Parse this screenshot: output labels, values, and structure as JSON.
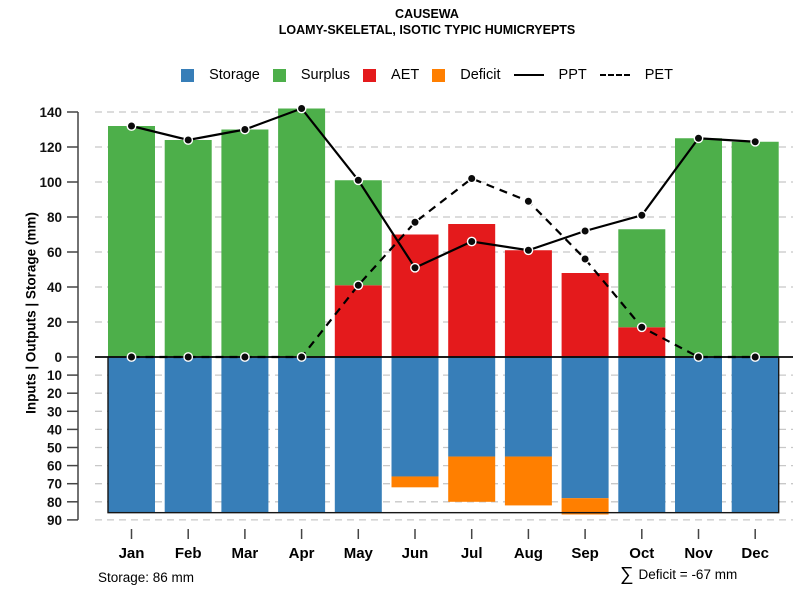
{
  "header": {
    "title": "CAUSEWA",
    "subtitle": "LOAMY-SKELETAL, ISOTIC TYPIC HUMICRYEPTS"
  },
  "legend": {
    "items": [
      {
        "label": "Storage",
        "swatch": "square",
        "color": "#377EB8"
      },
      {
        "label": "Surplus",
        "swatch": "square",
        "color": "#4DAF4A"
      },
      {
        "label": "AET",
        "swatch": "square",
        "color": "#E41A1C"
      },
      {
        "label": "Deficit",
        "swatch": "square",
        "color": "#FF7F00"
      },
      {
        "label": "PPT",
        "swatch": "solid-line",
        "color": "#000000"
      },
      {
        "label": "PET",
        "swatch": "dashed-line",
        "color": "#000000"
      }
    ]
  },
  "y_axis": {
    "label": "Inputs | Outputs | Storage (mm)",
    "upper_ticks": [
      0,
      20,
      40,
      60,
      80,
      100,
      120,
      140
    ],
    "lower_ticks": [
      10,
      20,
      30,
      40,
      50,
      60,
      70,
      80,
      90
    ]
  },
  "footnotes": {
    "storage": "Storage: 86 mm",
    "sum_symbol": "∑",
    "deficit": "Deficit = -67 mm"
  },
  "chart_data": {
    "type": "bar",
    "subtype": "stacked-bars-with-lines",
    "title": "CAUSEWA",
    "subtitle": "LOAMY-SKELETAL, ISOTIC TYPIC HUMICRYEPTS",
    "ylabel": "Inputs | Outputs | Storage (mm)",
    "categories": [
      "Jan",
      "Feb",
      "Mar",
      "Apr",
      "May",
      "Jun",
      "Jul",
      "Aug",
      "Sep",
      "Oct",
      "Nov",
      "Dec"
    ],
    "series": [
      {
        "name": "Surplus",
        "type": "bar",
        "stack": "above-zero",
        "color": "#4DAF4A",
        "values": [
          132,
          124,
          130,
          142,
          60,
          0,
          0,
          0,
          0,
          56,
          125,
          123
        ]
      },
      {
        "name": "AET",
        "type": "bar",
        "stack": "above-zero",
        "color": "#E41A1C",
        "values": [
          0,
          0,
          0,
          0,
          41,
          70,
          76,
          61,
          48,
          17,
          0,
          0
        ]
      },
      {
        "name": "Storage",
        "type": "bar",
        "stack": "below-zero",
        "color": "#377EB8",
        "values": [
          86,
          86,
          86,
          86,
          86,
          66,
          55,
          55,
          78,
          86,
          86,
          86
        ]
      },
      {
        "name": "Deficit",
        "type": "bar",
        "stack": "below-zero",
        "color": "#FF7F00",
        "values": [
          0,
          0,
          0,
          0,
          0,
          6,
          25,
          27,
          9,
          0,
          0,
          0
        ]
      },
      {
        "name": "PPT",
        "type": "line",
        "style": "solid",
        "color": "#000000",
        "values": [
          132,
          124,
          130,
          142,
          101,
          51,
          66,
          61,
          72,
          81,
          125,
          123
        ]
      },
      {
        "name": "PET",
        "type": "line",
        "style": "dashed",
        "color": "#000000",
        "values": [
          0,
          0,
          0,
          0,
          41,
          77,
          102,
          89,
          56,
          17,
          0,
          0
        ]
      }
    ],
    "y_upper_max": 140,
    "y_lower_max": 90,
    "upper_tick_step": 20,
    "lower_tick_step": 10,
    "storage_capacity_mm": 86,
    "total_deficit_mm": -67,
    "grid": "dashed-horizontal",
    "legend_position": "top-center",
    "gridline_color": "#c8c8c8",
    "marker_color": "#0b0b0b"
  }
}
